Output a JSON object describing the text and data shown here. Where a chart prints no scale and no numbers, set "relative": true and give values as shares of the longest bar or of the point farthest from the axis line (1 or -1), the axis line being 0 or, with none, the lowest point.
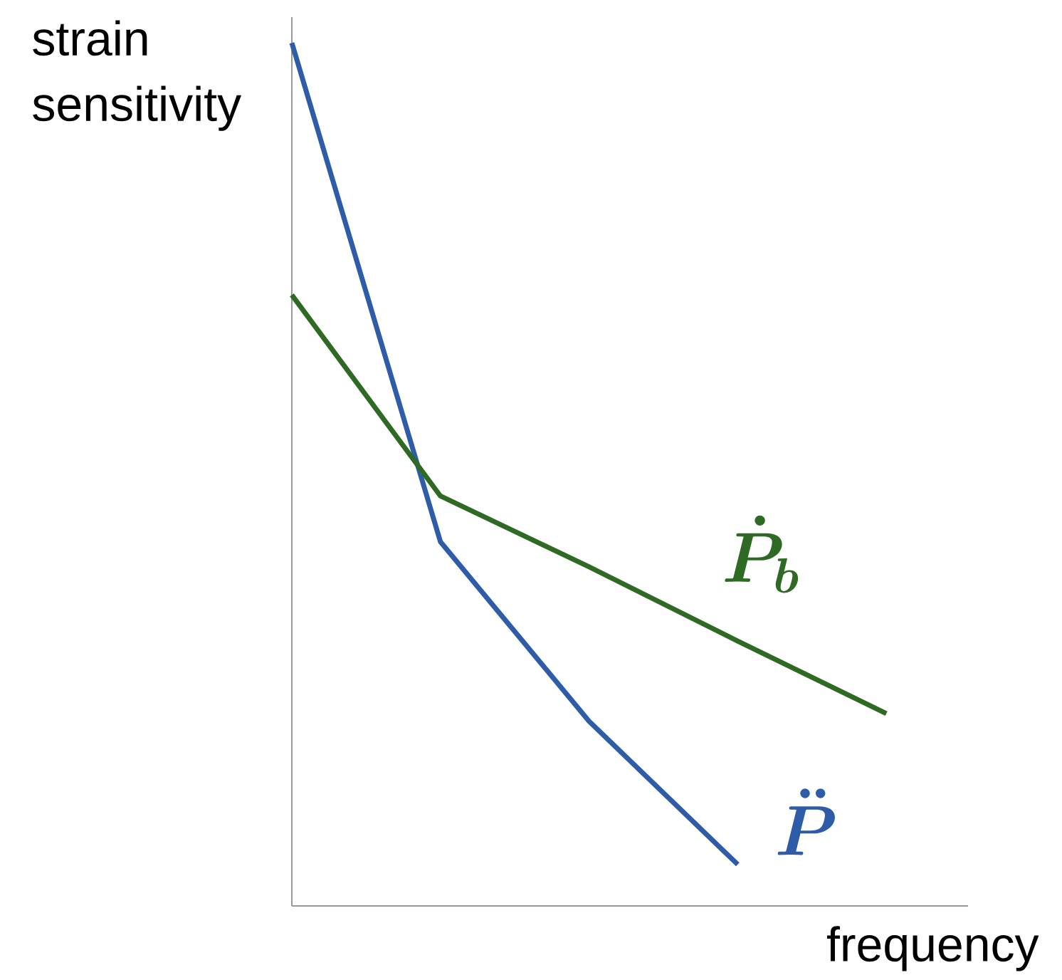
{
  "chart_data": {
    "type": "line",
    "relative": true,
    "xlabel": "frequency",
    "ylabel": "strain sensitivity",
    "categories": [
      null,
      null,
      null,
      null,
      null
    ],
    "series": [
      {
        "name": "\\ddot{P}",
        "color": "#2e5ca8",
        "values": [
          1,
          0.422,
          0.214,
          0.048,
          null
        ]
      },
      {
        "name": "\\dot{P}_b",
        "color": "#2f6a24",
        "values": [
          0.708,
          0.475,
          0.393,
          0.307,
          0.223
        ]
      }
    ],
    "marker": "none",
    "line_style": "solid"
  }
}
